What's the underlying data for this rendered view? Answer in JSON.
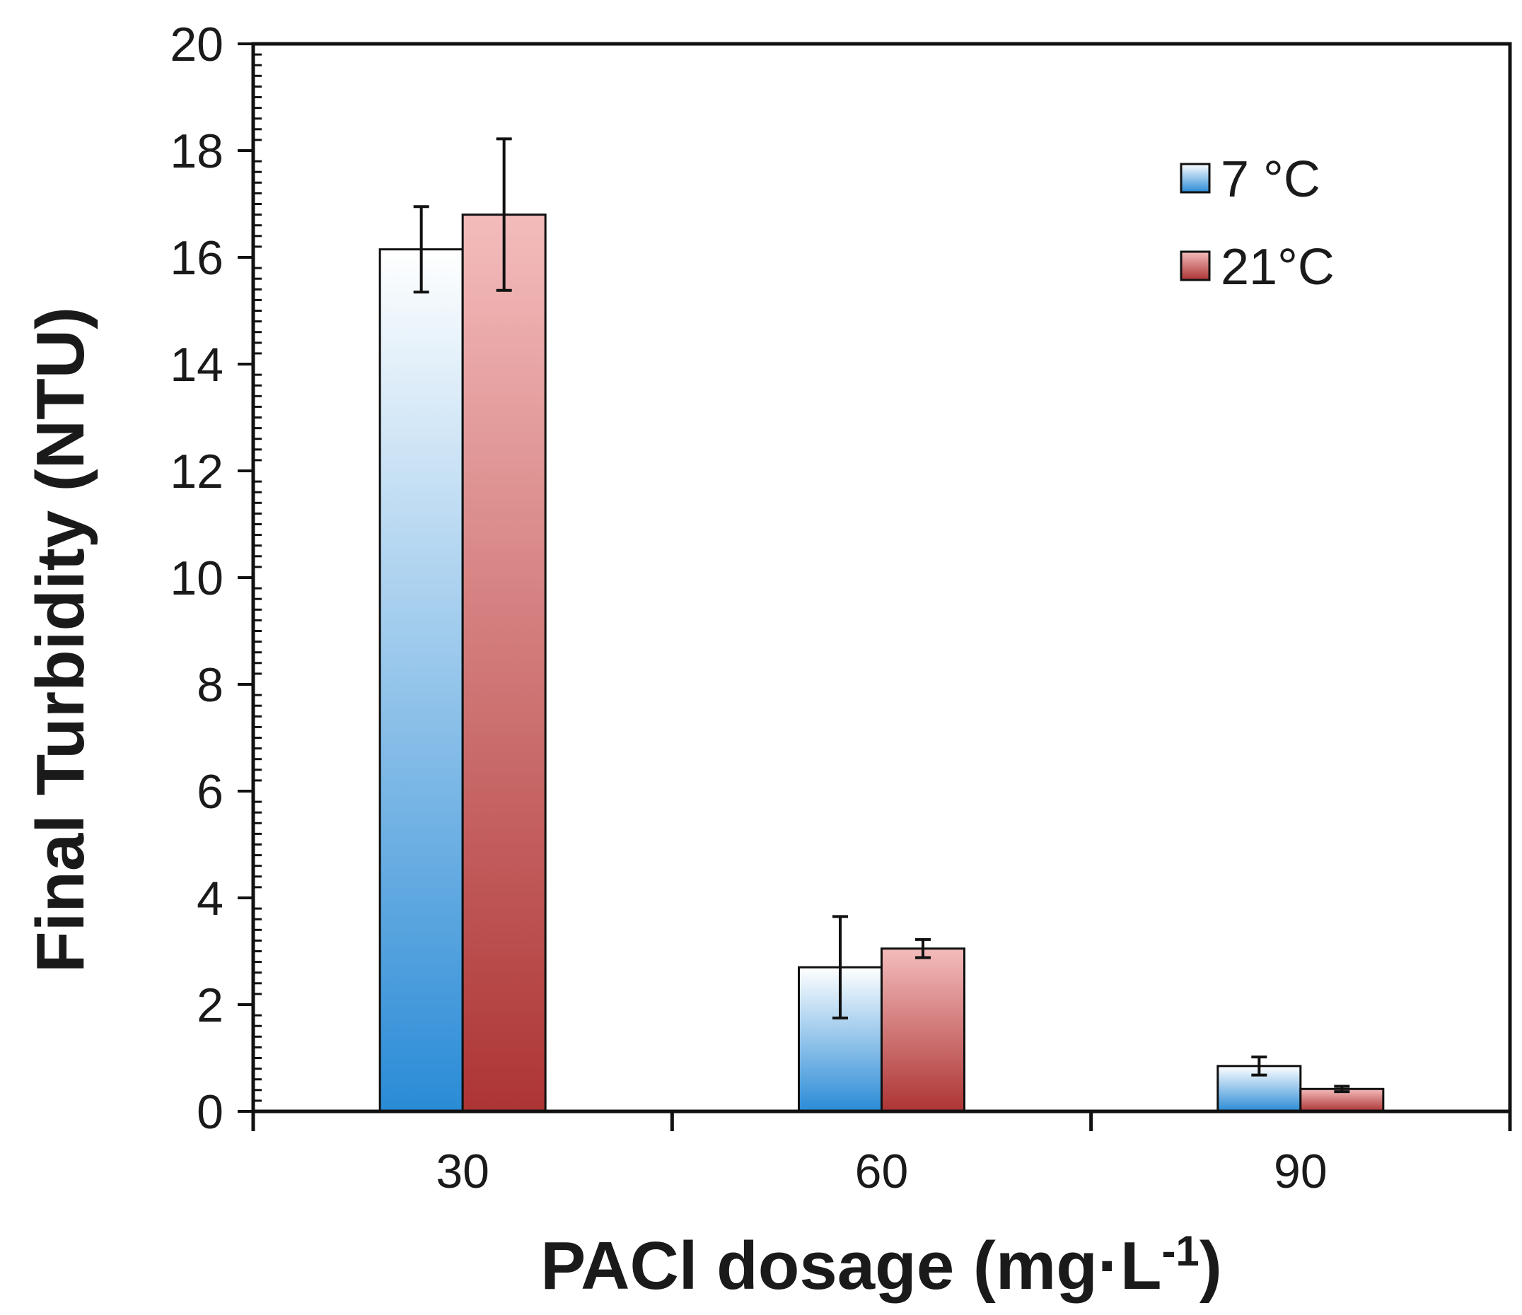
{
  "chart_data": {
    "type": "bar",
    "title": "",
    "xlabel": "PACl dosage (mg·L",
    "xlabel_sup": "-1",
    "xlabel_close": ")",
    "ylabel": "Final Turbidity (NTU)",
    "ylim": [
      0,
      20
    ],
    "yticks": [
      0,
      2,
      4,
      6,
      8,
      10,
      12,
      14,
      16,
      18,
      20
    ],
    "categories": [
      "30",
      "60",
      "90"
    ],
    "series": [
      {
        "name": "7 °C",
        "values": [
          16.15,
          2.7,
          0.85
        ],
        "errors": [
          0.8,
          0.95,
          0.17
        ],
        "color_top": "#ffffff",
        "color_bottom": "#2a8bd6"
      },
      {
        "name": "21°C",
        "values": [
          16.8,
          3.05,
          0.42
        ],
        "errors": [
          1.42,
          0.17,
          0.05
        ],
        "color_top": "#f4bcbc",
        "color_bottom": "#ad3434"
      }
    ],
    "legend_position": "top-right",
    "grid": false
  }
}
